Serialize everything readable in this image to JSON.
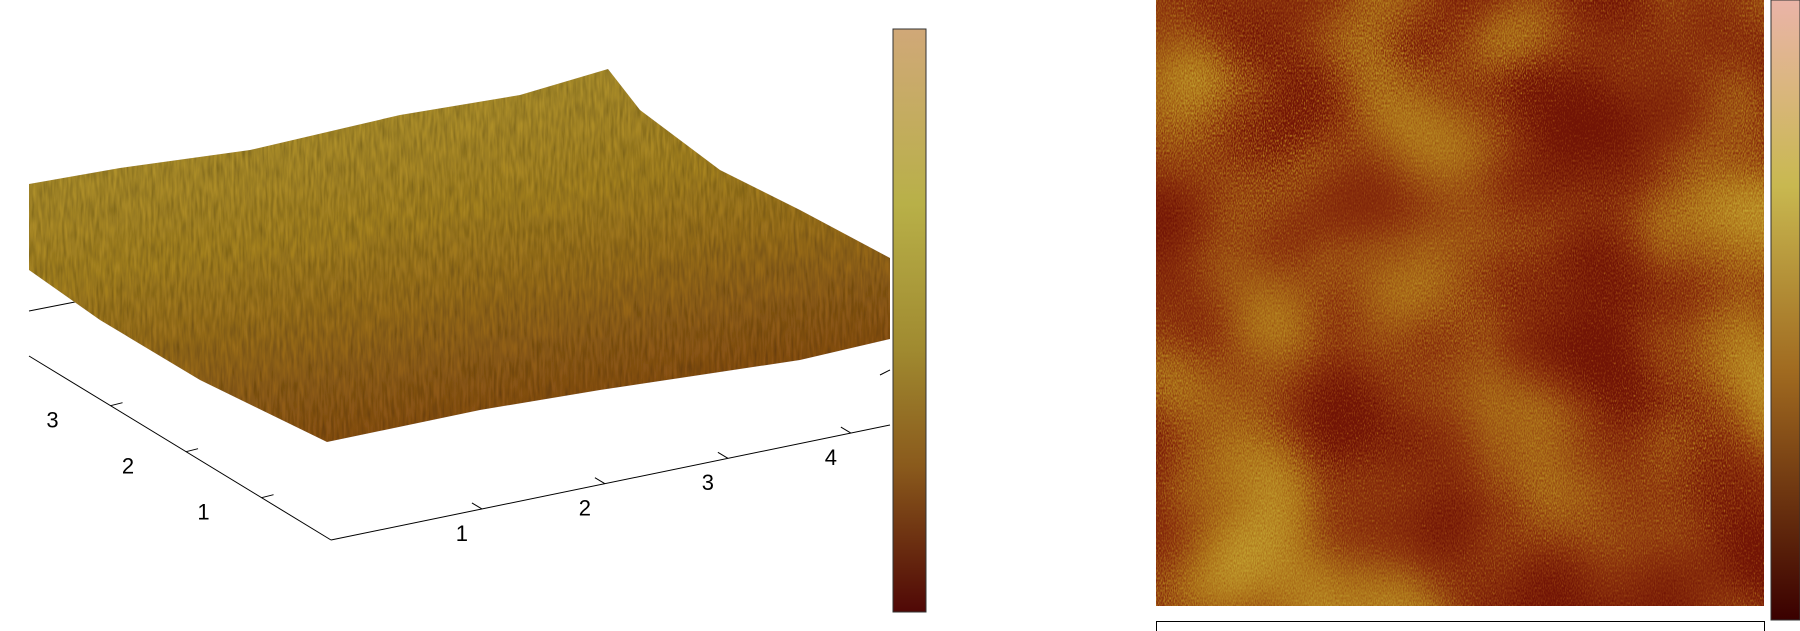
{
  "chart_data": [
    {
      "type": "surface3d",
      "xticks": [
        1,
        2,
        3,
        4
      ],
      "yticks": [
        1,
        2,
        3
      ]
    },
    {
      "type": "heatmap"
    }
  ]
}
